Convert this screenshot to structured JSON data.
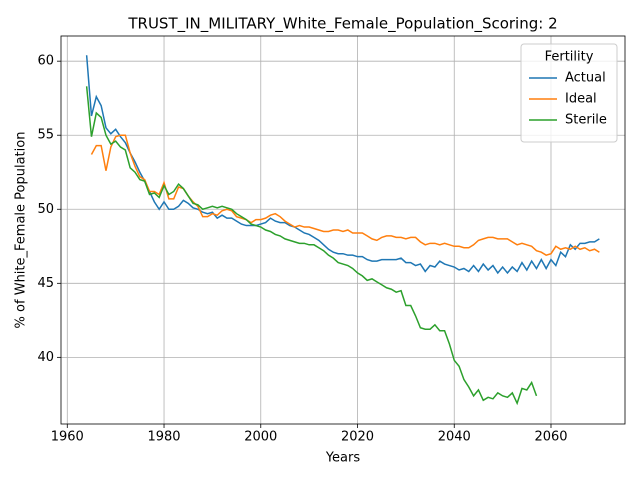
{
  "chart_data": {
    "type": "line",
    "title": "TRUST_IN_MILITARY_White_Female_Population_Scoring: 2",
    "xlabel": "Years",
    "ylabel": "% of White_Female Population",
    "legend_title": "Fertility",
    "legend": "upper right",
    "grid": true,
    "xlim": [
      1958.7,
      2075.3
    ],
    "ylim": [
      35.5,
      61.7
    ],
    "xticks": [
      1960,
      1980,
      2000,
      2020,
      2040,
      2060
    ],
    "yticks": [
      40,
      45,
      50,
      55,
      60
    ],
    "x": [
      1964,
      1965,
      1966,
      1967,
      1968,
      1969,
      1970,
      1971,
      1972,
      1973,
      1974,
      1975,
      1976,
      1977,
      1978,
      1979,
      1980,
      1981,
      1982,
      1983,
      1984,
      1985,
      1986,
      1987,
      1988,
      1989,
      1990,
      1991,
      1992,
      1993,
      1994,
      1995,
      1996,
      1997,
      1998,
      1999,
      2000,
      2001,
      2002,
      2003,
      2004,
      2005,
      2006,
      2007,
      2008,
      2009,
      2010,
      2011,
      2012,
      2013,
      2014,
      2015,
      2016,
      2017,
      2018,
      2019,
      2020,
      2021,
      2022,
      2023,
      2024,
      2025,
      2026,
      2027,
      2028,
      2029,
      2030,
      2031,
      2032,
      2033,
      2034,
      2035,
      2036,
      2037,
      2038,
      2039,
      2040,
      2041,
      2042,
      2043,
      2044,
      2045,
      2046,
      2047,
      2048,
      2049,
      2050,
      2051,
      2052,
      2053,
      2054,
      2055,
      2056,
      2057,
      2058,
      2059,
      2060,
      2061,
      2062,
      2063,
      2064,
      2065,
      2066,
      2067,
      2068,
      2069,
      2070
    ],
    "series": [
      {
        "name": "Actual",
        "color": "#1f77b4",
        "values": [
          60.4,
          56.3,
          57.6,
          57.0,
          55.5,
          55.1,
          55.4,
          54.9,
          54.5,
          53.8,
          53.2,
          52.5,
          51.9,
          51.2,
          50.5,
          50.0,
          50.5,
          50.0,
          50.0,
          50.2,
          50.6,
          50.4,
          50.1,
          50.0,
          49.8,
          49.7,
          49.8,
          49.4,
          49.6,
          49.4,
          49.4,
          49.2,
          49.0,
          48.9,
          48.9,
          48.9,
          49.0,
          49.1,
          49.4,
          49.2,
          49.1,
          49.1,
          48.9,
          48.8,
          48.6,
          48.4,
          48.3,
          48.1,
          47.9,
          47.6,
          47.3,
          47.1,
          47.0,
          47.0,
          46.9,
          46.9,
          46.8,
          46.8,
          46.6,
          46.5,
          46.5,
          46.6,
          46.6,
          46.6,
          46.6,
          46.7,
          46.4,
          46.4,
          46.2,
          46.3,
          45.8,
          46.2,
          46.1,
          46.5,
          46.3,
          46.2,
          46.1,
          45.9,
          46.0,
          45.8,
          46.2,
          45.8,
          46.3,
          45.9,
          46.2,
          45.7,
          46.1,
          45.7,
          46.1,
          45.8,
          46.4,
          45.9,
          46.5,
          46.0,
          46.6,
          46.0,
          46.6,
          46.2,
          47.1,
          46.8,
          47.6,
          47.3,
          47.7,
          47.7,
          47.8,
          47.8,
          48.0
        ]
      },
      {
        "name": "Ideal",
        "color": "#ff7f0e",
        "values": [
          null,
          53.7,
          54.3,
          54.3,
          52.6,
          54.2,
          54.9,
          55.0,
          55.0,
          53.8,
          52.9,
          52.2,
          52.0,
          51.2,
          51.2,
          51.0,
          51.8,
          50.7,
          50.7,
          51.5,
          51.4,
          50.9,
          50.5,
          50.2,
          49.5,
          49.5,
          49.7,
          49.6,
          49.9,
          50.0,
          49.9,
          49.5,
          49.4,
          49.3,
          49.1,
          49.3,
          49.3,
          49.4,
          49.6,
          49.7,
          49.5,
          49.2,
          49.0,
          48.8,
          48.9,
          48.8,
          48.8,
          48.7,
          48.6,
          48.5,
          48.5,
          48.6,
          48.6,
          48.5,
          48.6,
          48.4,
          48.4,
          48.4,
          48.2,
          48.0,
          47.9,
          48.1,
          48.2,
          48.2,
          48.1,
          48.1,
          48.0,
          48.1,
          48.1,
          47.8,
          47.6,
          47.7,
          47.7,
          47.6,
          47.7,
          47.6,
          47.5,
          47.5,
          47.4,
          47.4,
          47.6,
          47.9,
          48.0,
          48.1,
          48.1,
          48.0,
          48.0,
          48.0,
          47.8,
          47.6,
          47.7,
          47.6,
          47.5,
          47.2,
          47.1,
          46.9,
          47.0,
          47.5,
          47.3,
          47.4,
          47.3,
          47.5,
          47.3,
          47.4,
          47.2,
          47.3,
          47.1
        ]
      },
      {
        "name": "Sterile",
        "color": "#2ca02c",
        "values": [
          58.3,
          54.9,
          56.5,
          56.2,
          55.0,
          54.4,
          54.6,
          54.2,
          54.0,
          52.8,
          52.5,
          52.0,
          51.9,
          51.0,
          51.1,
          50.8,
          51.6,
          51.0,
          51.2,
          51.7,
          51.4,
          50.9,
          50.4,
          50.3,
          50.0,
          50.1,
          50.2,
          50.1,
          50.2,
          50.1,
          50.0,
          49.7,
          49.5,
          49.3,
          49.0,
          48.9,
          48.8,
          48.6,
          48.5,
          48.3,
          48.2,
          48.0,
          47.9,
          47.8,
          47.7,
          47.7,
          47.6,
          47.6,
          47.4,
          47.2,
          46.9,
          46.7,
          46.4,
          46.3,
          46.2,
          46.0,
          45.7,
          45.5,
          45.2,
          45.3,
          45.1,
          44.9,
          44.7,
          44.6,
          44.4,
          44.5,
          43.5,
          43.5,
          42.8,
          42.0,
          41.9,
          41.9,
          42.2,
          41.8,
          41.8,
          40.9,
          39.8,
          39.4,
          38.5,
          38.0,
          37.4,
          37.8,
          37.1,
          37.3,
          37.2,
          37.6,
          37.4,
          37.3,
          37.6,
          36.9,
          37.9,
          37.8,
          38.3,
          37.4,
          null,
          null,
          null,
          null,
          null,
          null,
          null,
          null,
          null,
          null,
          null,
          null,
          null
        ]
      }
    ]
  }
}
